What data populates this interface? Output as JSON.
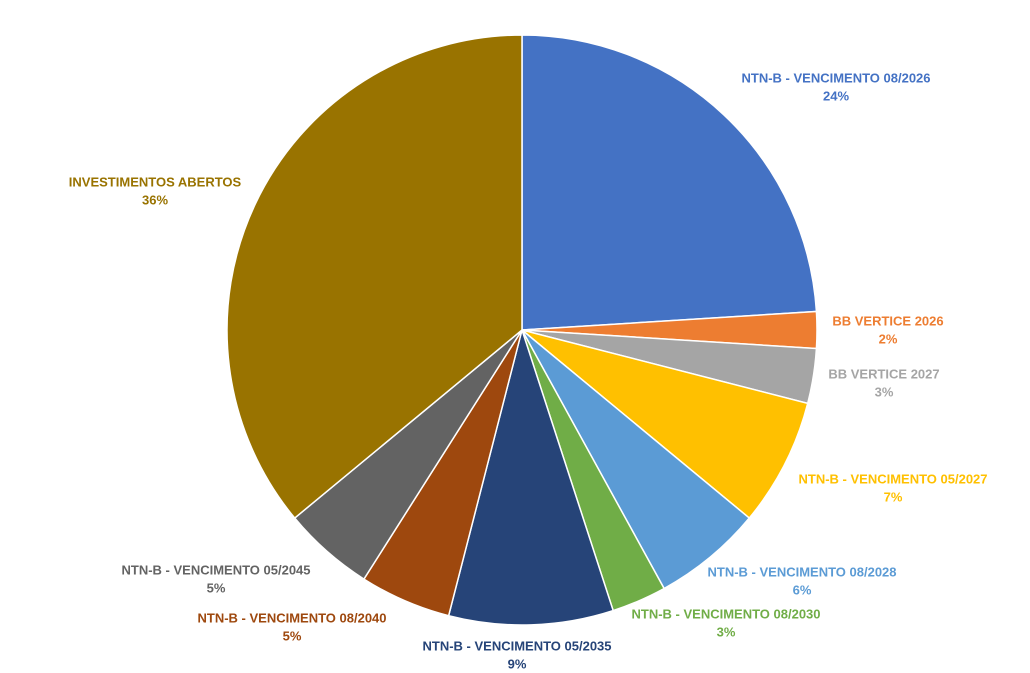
{
  "chart_data": {
    "type": "pie",
    "categories": [
      "NTN-B - VENCIMENTO 08/2026",
      "BB VERTICE 2026",
      "BB VERTICE 2027",
      "NTN-B - VENCIMENTO 05/2027",
      "NTN-B - VENCIMENTO 08/2028",
      "NTN-B - VENCIMENTO 08/2030",
      "NTN-B - VENCIMENTO 05/2035",
      "NTN-B - VENCIMENTO 08/2040",
      "NTN-B - VENCIMENTO 05/2045",
      "INVESTIMENTOS ABERTOS"
    ],
    "values": [
      24,
      2,
      3,
      7,
      6,
      3,
      9,
      5,
      5,
      36
    ],
    "value_labels": [
      "24%",
      "2%",
      "3%",
      "7%",
      "6%",
      "3%",
      "9%",
      "5%",
      "5%",
      "36%"
    ],
    "colors": [
      "#4472c4",
      "#ed7d31",
      "#a5a5a5",
      "#ffc000",
      "#5b9bd5",
      "#70ad47",
      "#264478",
      "#9e480e",
      "#636363",
      "#997300"
    ]
  }
}
